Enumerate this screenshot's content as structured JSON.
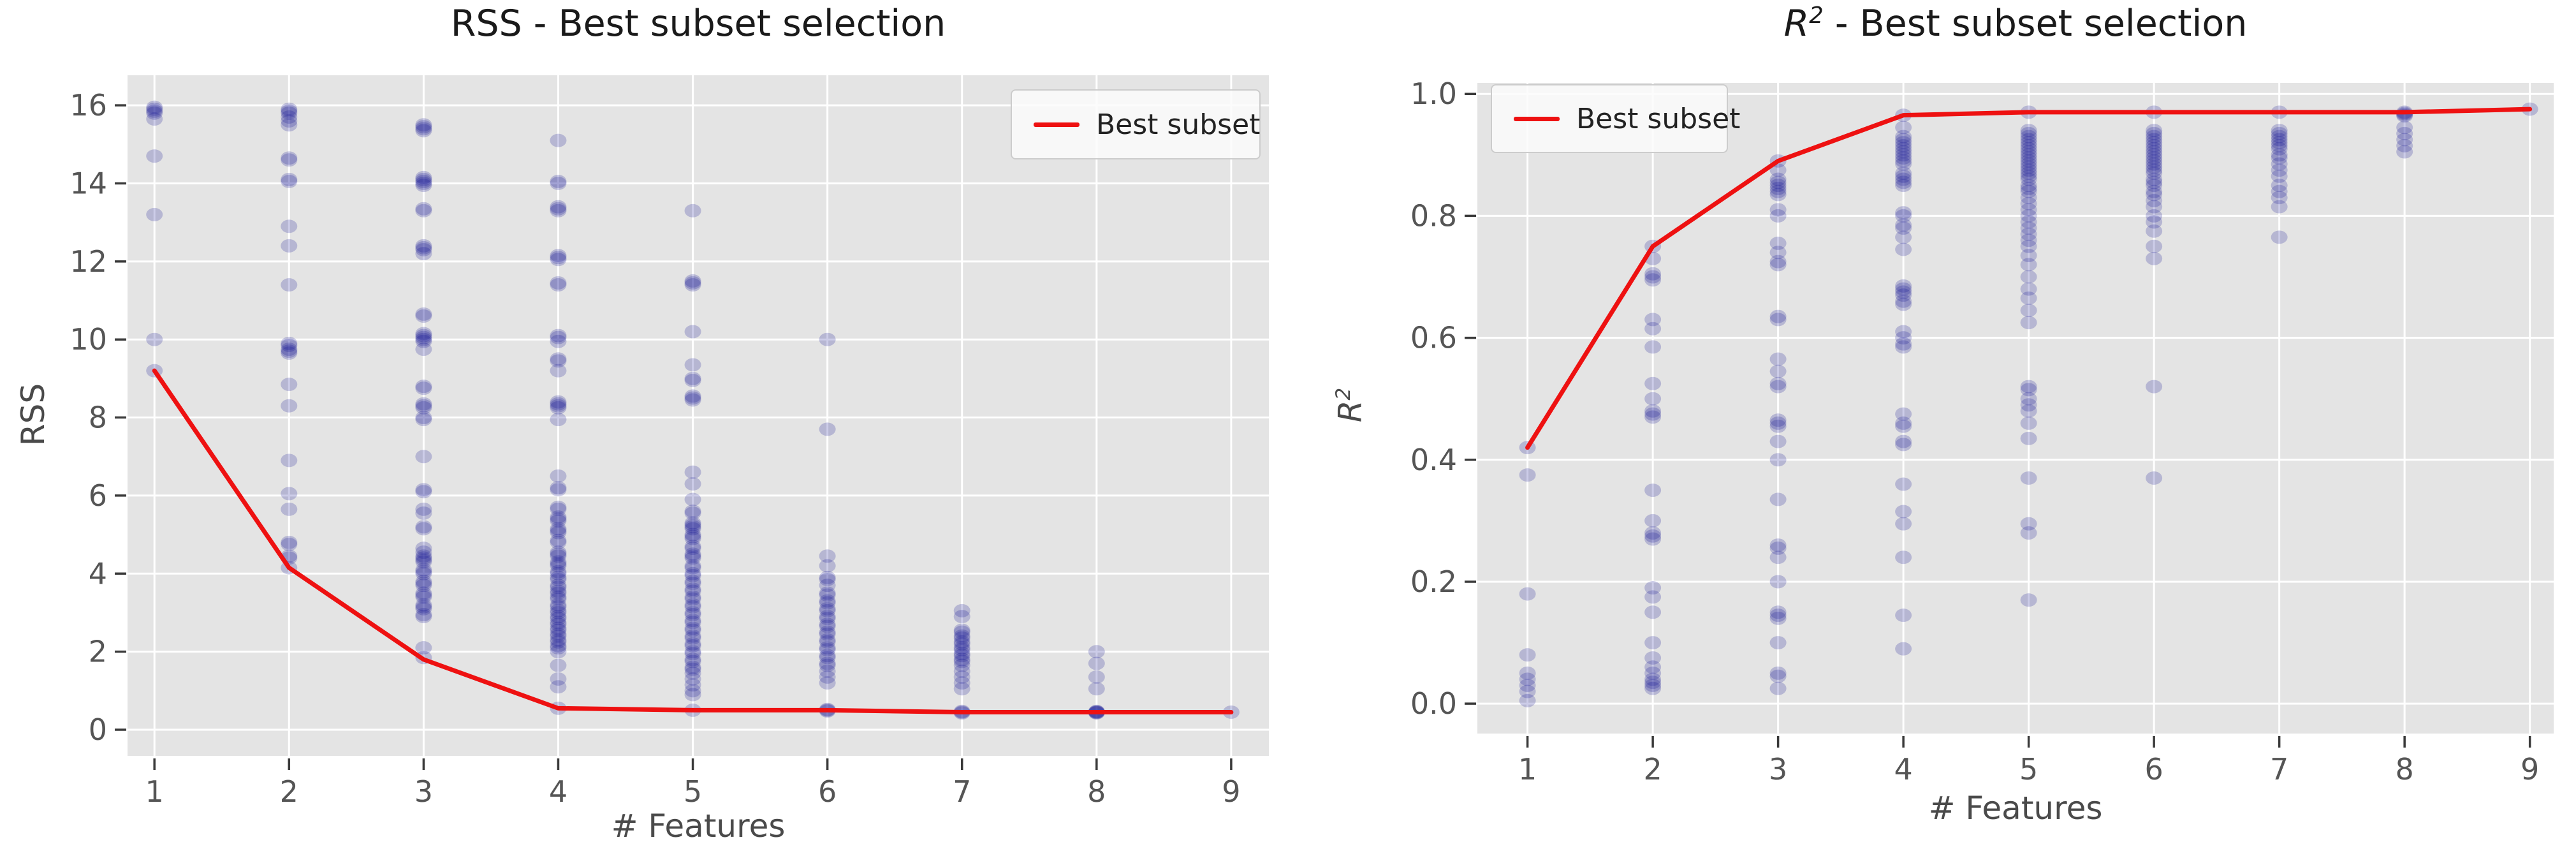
{
  "figure": {
    "background": "#ffffff",
    "panel_count": 2
  },
  "chart_data": [
    {
      "type": "scatter",
      "title": "RSS - Best subset selection",
      "xlabel": "# Features",
      "ylabel": "RSS",
      "legend": {
        "label": "Best subset",
        "position": "top-right"
      },
      "colors": {
        "point": "#00008b",
        "line": "#ee1111",
        "plot_background": "#e4e4e4",
        "grid": "#ffffff",
        "tick_label": "#555555",
        "tick_mark": "#3a3a3a"
      },
      "point_alpha": 0.2,
      "grid": true,
      "axes": {
        "xlim": [
          0.8,
          9.28
        ],
        "ylim": [
          -0.67,
          16.77
        ],
        "xticks": [
          1,
          2,
          3,
          4,
          5,
          6,
          7,
          8,
          9
        ],
        "xtick_labels": [
          "1",
          "2",
          "3",
          "4",
          "5",
          "6",
          "7",
          "8",
          "9"
        ],
        "yticks": [
          0,
          2,
          4,
          6,
          8,
          10,
          12,
          14,
          16
        ],
        "ytick_labels": [
          "0",
          "2",
          "4",
          "6",
          "8",
          "10",
          "12",
          "14",
          "16"
        ]
      },
      "scatter_columns": [
        {
          "x": 1,
          "ys": [
            15.95,
            15.9,
            15.85,
            15.8,
            15.65,
            14.7,
            13.2,
            10.0,
            9.2
          ]
        },
        {
          "x": 2,
          "ys": [
            15.9,
            15.85,
            15.8,
            15.7,
            15.6,
            15.5,
            14.65,
            14.6,
            14.1,
            14.05,
            12.9,
            12.4,
            11.4,
            9.9,
            9.85,
            9.75,
            9.7,
            9.65,
            8.85,
            8.3,
            6.9,
            6.05,
            5.65,
            4.8,
            4.75,
            4.45,
            4.4,
            4.15
          ]
        },
        {
          "x": 3,
          "ys": [
            15.5,
            15.45,
            15.4,
            15.35,
            14.15,
            14.1,
            14.05,
            14.0,
            13.95,
            13.35,
            13.3,
            12.4,
            12.35,
            12.3,
            12.2,
            10.65,
            10.6,
            10.15,
            10.1,
            10.05,
            10.0,
            9.95,
            9.75,
            8.8,
            8.75,
            8.35,
            8.3,
            8.25,
            8.0,
            7.95,
            7.0,
            6.15,
            6.1,
            5.65,
            5.55,
            5.2,
            5.15,
            4.65,
            4.55,
            4.45,
            4.4,
            4.35,
            4.3,
            4.1,
            4.05,
            4.0,
            3.8,
            3.75,
            3.7,
            3.5,
            3.45,
            3.4,
            3.2,
            3.15,
            3.1,
            2.95,
            2.9,
            2.1,
            1.85
          ]
        },
        {
          "x": 4,
          "ys": [
            15.1,
            14.05,
            14.0,
            13.4,
            13.35,
            13.3,
            12.15,
            12.1,
            12.05,
            11.45,
            11.4,
            10.1,
            10.05,
            9.95,
            9.5,
            9.45,
            9.2,
            8.4,
            8.35,
            8.3,
            8.25,
            7.95,
            6.5,
            6.2,
            6.15,
            5.7,
            5.65,
            5.45,
            5.4,
            5.35,
            5.15,
            5.1,
            5.05,
            4.85,
            4.8,
            4.55,
            4.5,
            4.45,
            4.3,
            4.25,
            4.2,
            4.05,
            4.0,
            3.9,
            3.85,
            3.7,
            3.65,
            3.55,
            3.5,
            3.4,
            3.35,
            3.2,
            3.15,
            3.05,
            3.0,
            2.9,
            2.85,
            2.75,
            2.7,
            2.6,
            2.55,
            2.45,
            2.4,
            2.3,
            2.25,
            2.15,
            2.1,
            2.0,
            1.65,
            1.3,
            1.1,
            0.55
          ]
        },
        {
          "x": 5,
          "ys": [
            13.3,
            11.5,
            11.45,
            11.4,
            10.2,
            9.35,
            9.0,
            8.95,
            8.55,
            8.5,
            8.45,
            6.6,
            6.3,
            5.9,
            5.6,
            5.55,
            5.3,
            5.25,
            5.2,
            5.15,
            5.0,
            4.95,
            4.9,
            4.7,
            4.65,
            4.5,
            4.45,
            4.4,
            4.2,
            4.15,
            4.0,
            3.95,
            3.8,
            3.75,
            3.6,
            3.55,
            3.4,
            3.35,
            3.2,
            3.15,
            3.0,
            2.95,
            2.8,
            2.75,
            2.6,
            2.55,
            2.4,
            2.35,
            2.2,
            2.15,
            2.0,
            1.95,
            1.8,
            1.75,
            1.6,
            1.55,
            1.45,
            1.3,
            1.15,
            1.0,
            0.9,
            0.5
          ]
        },
        {
          "x": 6,
          "ys": [
            10.0,
            7.7,
            4.45,
            4.2,
            3.9,
            3.85,
            3.7,
            3.5,
            3.45,
            3.3,
            3.25,
            3.1,
            3.05,
            2.9,
            2.85,
            2.7,
            2.65,
            2.5,
            2.45,
            2.3,
            2.25,
            2.1,
            2.05,
            1.9,
            1.85,
            1.7,
            1.65,
            1.5,
            1.35,
            1.2,
            0.52,
            0.5,
            0.48
          ]
        },
        {
          "x": 7,
          "ys": [
            3.05,
            2.9,
            2.55,
            2.5,
            2.4,
            2.35,
            2.25,
            2.2,
            2.1,
            2.05,
            1.95,
            1.9,
            1.8,
            1.75,
            1.65,
            1.5,
            1.35,
            1.2,
            1.05,
            0.47,
            0.45,
            0.43
          ]
        },
        {
          "x": 8,
          "ys": [
            2.0,
            1.7,
            1.35,
            1.05,
            0.47,
            0.46,
            0.45,
            0.44,
            0.43
          ]
        },
        {
          "x": 9,
          "ys": [
            0.45
          ]
        }
      ],
      "best_line": {
        "x": [
          1,
          2,
          3,
          4,
          5,
          6,
          7,
          8,
          9
        ],
        "y": [
          9.2,
          4.15,
          1.8,
          0.55,
          0.5,
          0.5,
          0.45,
          0.45,
          0.45
        ]
      }
    },
    {
      "type": "scatter",
      "title": "R² - Best subset selection",
      "title_math": {
        "base": "R",
        "sup": "2",
        "rest": " - Best subset selection"
      },
      "xlabel": "# Features",
      "ylabel": "R²",
      "ylabel_math": {
        "base": "R",
        "sup": "2"
      },
      "legend": {
        "label": "Best subset",
        "position": "top-left"
      },
      "colors": {
        "point": "#00008b",
        "line": "#ee1111",
        "plot_background": "#e4e4e4",
        "grid": "#ffffff",
        "tick_label": "#555555",
        "tick_mark": "#3a3a3a"
      },
      "point_alpha": 0.2,
      "grid": true,
      "axes": {
        "xlim": [
          0.6,
          9.19
        ],
        "ylim": [
          -0.049,
          1.018
        ],
        "xticks": [
          1,
          2,
          3,
          4,
          5,
          6,
          7,
          8,
          9
        ],
        "xtick_labels": [
          "1",
          "2",
          "3",
          "4",
          "5",
          "6",
          "7",
          "8",
          "9"
        ],
        "yticks": [
          0.0,
          0.2,
          0.4,
          0.6,
          0.8,
          1.0
        ],
        "ytick_labels": [
          "0.0",
          "0.2",
          "0.4",
          "0.6",
          "0.8",
          "1.0"
        ]
      },
      "scatter_columns": [
        {
          "x": 1,
          "ys": [
            0.42,
            0.375,
            0.18,
            0.08,
            0.05,
            0.04,
            0.03,
            0.02,
            0.005
          ]
        },
        {
          "x": 2,
          "ys": [
            0.75,
            0.73,
            0.705,
            0.7,
            0.695,
            0.63,
            0.615,
            0.585,
            0.525,
            0.5,
            0.48,
            0.475,
            0.47,
            0.35,
            0.3,
            0.28,
            0.275,
            0.27,
            0.19,
            0.175,
            0.15,
            0.1,
            0.075,
            0.06,
            0.05,
            0.04,
            0.035,
            0.03,
            0.025
          ]
        },
        {
          "x": 3,
          "ys": [
            0.89,
            0.875,
            0.86,
            0.855,
            0.85,
            0.845,
            0.84,
            0.835,
            0.81,
            0.8,
            0.755,
            0.74,
            0.725,
            0.72,
            0.635,
            0.63,
            0.565,
            0.545,
            0.525,
            0.52,
            0.465,
            0.46,
            0.455,
            0.43,
            0.4,
            0.335,
            0.26,
            0.255,
            0.24,
            0.2,
            0.15,
            0.145,
            0.14,
            0.1,
            0.05,
            0.045,
            0.025
          ]
        },
        {
          "x": 4,
          "ys": [
            0.965,
            0.945,
            0.93,
            0.925,
            0.92,
            0.915,
            0.91,
            0.905,
            0.9,
            0.895,
            0.89,
            0.885,
            0.87,
            0.865,
            0.86,
            0.855,
            0.85,
            0.805,
            0.8,
            0.785,
            0.78,
            0.765,
            0.745,
            0.685,
            0.68,
            0.675,
            0.67,
            0.66,
            0.655,
            0.61,
            0.6,
            0.59,
            0.585,
            0.475,
            0.46,
            0.455,
            0.43,
            0.425,
            0.36,
            0.315,
            0.295,
            0.24,
            0.145,
            0.09
          ]
        },
        {
          "x": 5,
          "ys": [
            0.97,
            0.94,
            0.935,
            0.93,
            0.925,
            0.92,
            0.915,
            0.91,
            0.905,
            0.9,
            0.895,
            0.89,
            0.885,
            0.88,
            0.875,
            0.87,
            0.865,
            0.86,
            0.85,
            0.845,
            0.84,
            0.83,
            0.82,
            0.81,
            0.8,
            0.79,
            0.78,
            0.77,
            0.76,
            0.75,
            0.735,
            0.72,
            0.7,
            0.68,
            0.665,
            0.645,
            0.625,
            0.52,
            0.515,
            0.5,
            0.49,
            0.48,
            0.46,
            0.435,
            0.37,
            0.295,
            0.28,
            0.17
          ]
        },
        {
          "x": 6,
          "ys": [
            0.97,
            0.94,
            0.935,
            0.93,
            0.925,
            0.92,
            0.915,
            0.91,
            0.905,
            0.9,
            0.895,
            0.89,
            0.885,
            0.88,
            0.875,
            0.87,
            0.86,
            0.855,
            0.85,
            0.84,
            0.835,
            0.825,
            0.815,
            0.8,
            0.79,
            0.775,
            0.75,
            0.73,
            0.52,
            0.37
          ]
        },
        {
          "x": 7,
          "ys": [
            0.97,
            0.94,
            0.935,
            0.93,
            0.925,
            0.92,
            0.915,
            0.91,
            0.9,
            0.895,
            0.885,
            0.875,
            0.865,
            0.85,
            0.84,
            0.83,
            0.815,
            0.765
          ]
        },
        {
          "x": 8,
          "ys": [
            0.97,
            0.968,
            0.966,
            0.964,
            0.945,
            0.935,
            0.925,
            0.915,
            0.905
          ]
        },
        {
          "x": 9,
          "ys": [
            0.975
          ]
        }
      ],
      "best_line": {
        "x": [
          1,
          2,
          3,
          4,
          5,
          6,
          7,
          8,
          9
        ],
        "y": [
          0.42,
          0.75,
          0.89,
          0.965,
          0.97,
          0.97,
          0.97,
          0.97,
          0.975
        ]
      }
    }
  ]
}
